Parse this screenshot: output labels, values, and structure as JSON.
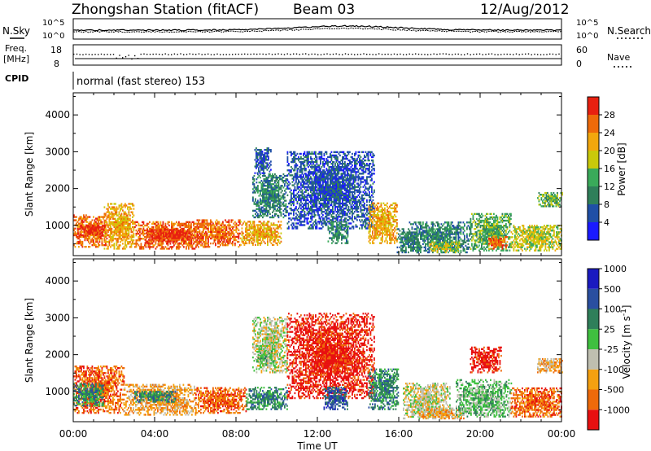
{
  "header": {
    "station": "Zhongshan Station (fitACF)",
    "beam": "Beam 03",
    "date": "12/Aug/2012"
  },
  "noise_panel": {
    "left_label": "N.Sky",
    "right_label": "N.Search",
    "tick_top": "10^5",
    "tick_bottom": "10^0"
  },
  "freq_panel": {
    "left_label_1": "Freq.",
    "left_label_2": "[MHz]",
    "left_tick_top": "18",
    "left_tick_bottom": "8",
    "right_label": "Nave",
    "right_tick_top": "60",
    "right_tick_bottom": "0"
  },
  "cpid": {
    "label": "CPID",
    "text": "normal (fast stereo) 153"
  },
  "colors": {
    "power": [
      "#1a1aff",
      "#1f4fa6",
      "#2f7f5a",
      "#3aaa5a",
      "#c9c90a",
      "#f2a70d",
      "#ee6a0a",
      "#e82010"
    ],
    "velocity": [
      "#e81010",
      "#ee6a0a",
      "#f4a010",
      "#bfbfb0",
      "#3fc03f",
      "#2f7f5a",
      "#2a4fa0",
      "#1a1ac0"
    ]
  },
  "chart_data": [
    {
      "type": "heatmap",
      "ylabel": "Slant Range [km]",
      "yticks": [
        "1000",
        "2000",
        "3000",
        "4000"
      ],
      "ylim": [
        180,
        4600
      ],
      "xlim": [
        0,
        24
      ],
      "colorbar": {
        "label": "Power [dB]",
        "ticks": [
          "4",
          "8",
          "12",
          "16",
          "20",
          "24",
          "28"
        ],
        "range": [
          0,
          32
        ]
      },
      "regions": [
        {
          "t0": 0.0,
          "t1": 1.8,
          "r0": 400,
          "r1": 1300,
          "level": 6
        },
        {
          "t0": 0.2,
          "t1": 1.6,
          "r0": 700,
          "r1": 1000,
          "level": 7
        },
        {
          "t0": 1.5,
          "t1": 3.0,
          "r0": 350,
          "r1": 1600,
          "level": 5
        },
        {
          "t0": 3.0,
          "t1": 6.5,
          "r0": 350,
          "r1": 1100,
          "level": 6
        },
        {
          "t0": 3.5,
          "t1": 6.0,
          "r0": 500,
          "r1": 900,
          "level": 7
        },
        {
          "t0": 6.0,
          "t1": 8.2,
          "r0": 400,
          "r1": 1150,
          "level": 6
        },
        {
          "t0": 8.2,
          "t1": 10.2,
          "r0": 450,
          "r1": 1100,
          "level": 5
        },
        {
          "t0": 8.8,
          "t1": 10.5,
          "r0": 1200,
          "r1": 2400,
          "level": 2
        },
        {
          "t0": 8.9,
          "t1": 9.7,
          "r0": 2400,
          "r1": 3100,
          "level": 1
        },
        {
          "t0": 10.5,
          "t1": 14.8,
          "r0": 900,
          "r1": 3000,
          "level": 1
        },
        {
          "t0": 12.5,
          "t1": 13.5,
          "r0": 500,
          "r1": 1100,
          "level": 2
        },
        {
          "t0": 14.5,
          "t1": 15.9,
          "r0": 500,
          "r1": 1600,
          "level": 5
        },
        {
          "t0": 15.9,
          "t1": 17.0,
          "r0": 250,
          "r1": 900,
          "level": 2
        },
        {
          "t0": 16.5,
          "t1": 19.5,
          "r0": 250,
          "r1": 1100,
          "level": 2
        },
        {
          "t0": 17.5,
          "t1": 19.0,
          "r0": 250,
          "r1": 550,
          "level": 4
        },
        {
          "t0": 19.5,
          "t1": 21.5,
          "r0": 300,
          "r1": 1300,
          "level": 3
        },
        {
          "t0": 20.4,
          "t1": 21.3,
          "r0": 350,
          "r1": 700,
          "level": 6
        },
        {
          "t0": 21.5,
          "t1": 24.0,
          "r0": 300,
          "r1": 1000,
          "level": 4
        },
        {
          "t0": 22.8,
          "t1": 24.0,
          "r0": 1500,
          "r1": 1900,
          "level": 3
        }
      ]
    },
    {
      "type": "heatmap",
      "ylabel": "Slant Range [km]",
      "yticks": [
        "1000",
        "2000",
        "3000",
        "4000"
      ],
      "ylim": [
        180,
        4600
      ],
      "xlim": [
        0,
        24
      ],
      "xticks": [
        "00:00",
        "04:00",
        "08:00",
        "12:00",
        "16:00",
        "20:00",
        "00:00"
      ],
      "xlabel": "Time UT",
      "colorbar": {
        "label": "Velocity [m s^-1]",
        "ticks": [
          "-1000",
          "-500",
          "-100",
          "-25",
          "25",
          "100",
          "500",
          "1000"
        ],
        "range": [
          -1200,
          1200
        ]
      },
      "regions": [
        {
          "t0": 0.0,
          "t1": 2.5,
          "r0": 400,
          "r1": 1700,
          "level": 1
        },
        {
          "t0": 0.0,
          "t1": 1.5,
          "r0": 600,
          "r1": 1200,
          "level": 5
        },
        {
          "t0": 2.5,
          "t1": 6.0,
          "r0": 350,
          "r1": 1200,
          "level": 2
        },
        {
          "t0": 3.0,
          "t1": 5.0,
          "r0": 700,
          "r1": 1000,
          "level": 5
        },
        {
          "t0": 6.0,
          "t1": 8.5,
          "r0": 400,
          "r1": 1100,
          "level": 1
        },
        {
          "t0": 8.5,
          "t1": 10.5,
          "r0": 500,
          "r1": 1100,
          "level": 5
        },
        {
          "t0": 8.8,
          "t1": 10.5,
          "r0": 1500,
          "r1": 3000,
          "level": 3
        },
        {
          "t0": 9.0,
          "t1": 9.8,
          "r0": 1700,
          "r1": 2100,
          "level": 4
        },
        {
          "t0": 10.5,
          "t1": 14.8,
          "r0": 800,
          "r1": 3100,
          "level": 0
        },
        {
          "t0": 12.3,
          "t1": 13.5,
          "r0": 500,
          "r1": 1100,
          "level": 6
        },
        {
          "t0": 14.5,
          "t1": 16.0,
          "r0": 500,
          "r1": 1600,
          "level": 5
        },
        {
          "t0": 16.2,
          "t1": 18.5,
          "r0": 250,
          "r1": 1200,
          "level": 3
        },
        {
          "t0": 17.0,
          "t1": 19.2,
          "r0": 250,
          "r1": 550,
          "level": 2
        },
        {
          "t0": 18.8,
          "t1": 21.5,
          "r0": 300,
          "r1": 1300,
          "level": 4
        },
        {
          "t0": 19.5,
          "t1": 21.0,
          "r0": 1500,
          "r1": 2200,
          "level": 0
        },
        {
          "t0": 21.5,
          "t1": 24.0,
          "r0": 300,
          "r1": 1100,
          "level": 1
        },
        {
          "t0": 22.8,
          "t1": 24.0,
          "r0": 1500,
          "r1": 1900,
          "level": 2
        }
      ]
    }
  ]
}
